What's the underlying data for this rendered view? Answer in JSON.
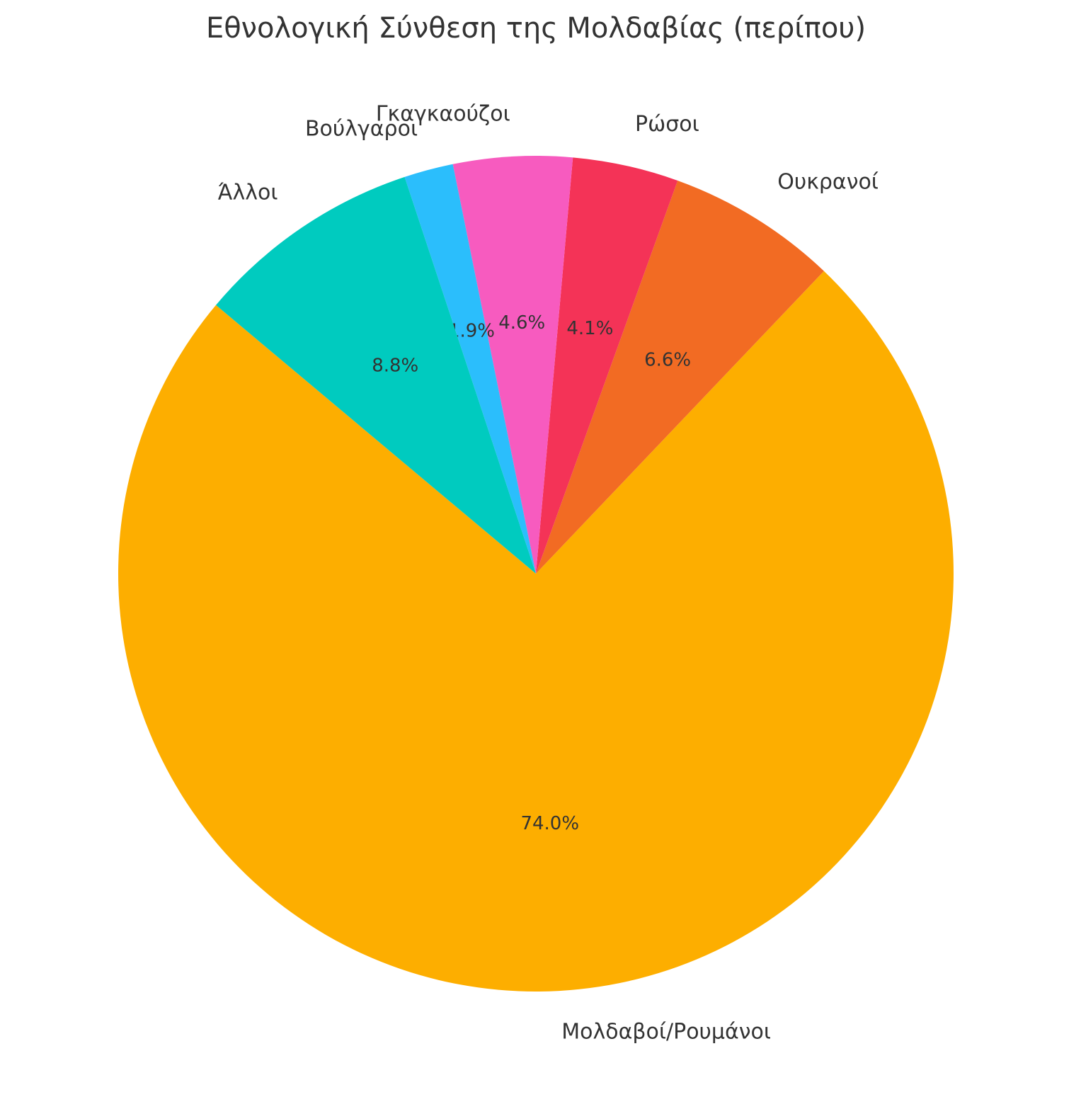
{
  "chart_data": {
    "type": "pie",
    "title": "Εθνολογική Σύνθεση της Μολδαβίας (περίπου)",
    "categories": [
      "Μολδαβοί/Ρουμάνοι",
      "Ουκρανοί",
      "Ρώσοι",
      "Γκαγκαούζοι",
      "Βούλγαροι",
      "Άλλοι"
    ],
    "values": [
      74.0,
      6.6,
      4.1,
      4.6,
      1.9,
      8.8
    ],
    "value_labels": [
      "74.0%",
      "6.6%",
      "4.1%",
      "4.6%",
      "1.9%",
      "8.8%"
    ],
    "colors": [
      "#fdae00",
      "#f26b23",
      "#f43357",
      "#f75bbf",
      "#2bbefc",
      "#00cbbf"
    ]
  }
}
